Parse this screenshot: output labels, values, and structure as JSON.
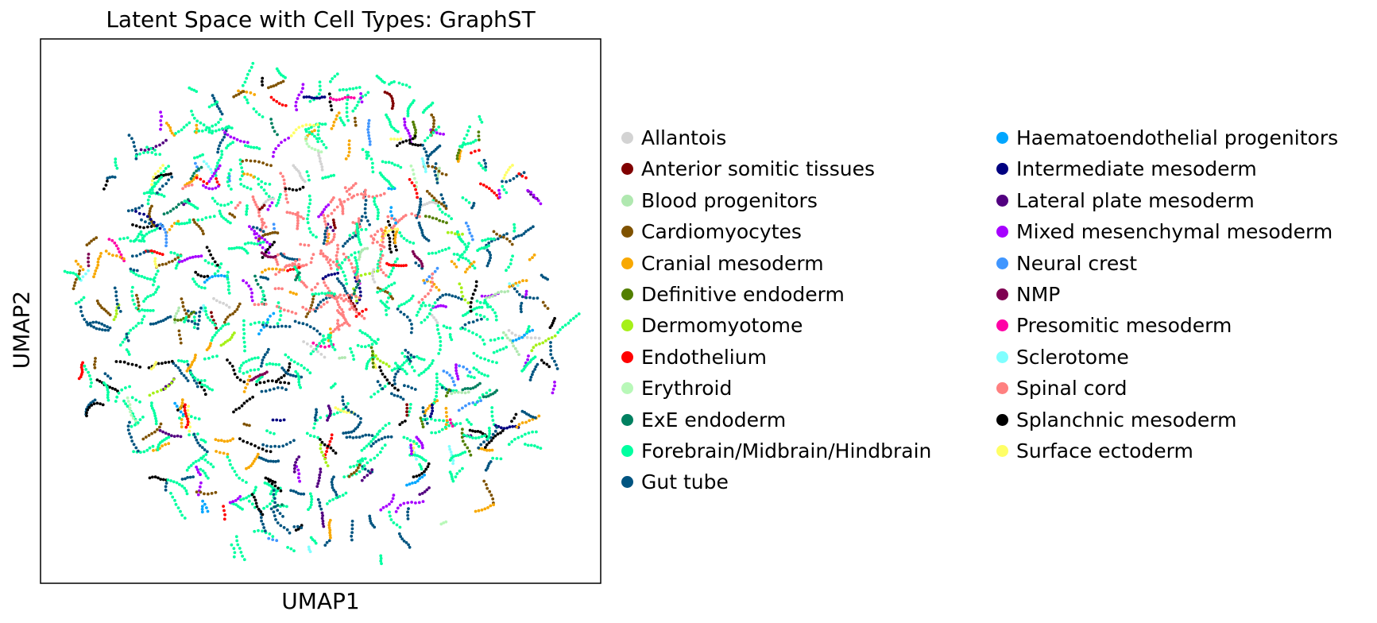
{
  "chart_data": {
    "type": "scatter",
    "title": "Latent Space with Cell Types: GraphST",
    "xlabel": "UMAP1",
    "ylabel": "UMAP2",
    "xticks": [],
    "yticks": [],
    "grid": false,
    "legend_position": "right",
    "series": [
      {
        "name": "Allantois",
        "color": "#d3d3d3",
        "weight": 1
      },
      {
        "name": "Anterior somitic tissues",
        "color": "#800000",
        "weight": 1
      },
      {
        "name": "Blood progenitors",
        "color": "#b0e8b0",
        "weight": 1
      },
      {
        "name": "Cardiomyocytes",
        "color": "#7f5200",
        "weight": 5
      },
      {
        "name": "Cranial mesoderm",
        "color": "#f8a800",
        "weight": 7
      },
      {
        "name": "Definitive endoderm",
        "color": "#527f00",
        "weight": 1
      },
      {
        "name": "Dermomyotome",
        "color": "#a6f018",
        "weight": 2
      },
      {
        "name": "Endothelium",
        "color": "#ff0000",
        "weight": 2
      },
      {
        "name": "Erythroid",
        "color": "#b8f8b8",
        "weight": 1
      },
      {
        "name": "ExE endoderm",
        "color": "#008060",
        "weight": 1
      },
      {
        "name": "Forebrain/Midbrain/Hindbrain",
        "color": "#00ffa0",
        "weight": 40
      },
      {
        "name": "Gut tube",
        "color": "#005480",
        "weight": 12
      },
      {
        "name": "Haematoendothelial progenitors",
        "color": "#00a6ff",
        "weight": 1
      },
      {
        "name": "Intermediate mesoderm",
        "color": "#000080",
        "weight": 1
      },
      {
        "name": "Lateral plate mesoderm",
        "color": "#520080",
        "weight": 1
      },
      {
        "name": "Mixed mesenchymal mesoderm",
        "color": "#a600ff",
        "weight": 6
      },
      {
        "name": "Neural crest",
        "color": "#4096ff",
        "weight": 2
      },
      {
        "name": "NMP",
        "color": "#7f0052",
        "weight": 1
      },
      {
        "name": "Presomitic mesoderm",
        "color": "#ff00a6",
        "weight": 1
      },
      {
        "name": "Sclerotome",
        "color": "#80ffff",
        "weight": 1
      },
      {
        "name": "Spinal cord",
        "color": "#ff8080",
        "weight": 8
      },
      {
        "name": "Splanchnic mesoderm",
        "color": "#000000",
        "weight": 5
      },
      {
        "name": "Surface ectoderm",
        "color": "#ffff66",
        "weight": 2
      }
    ]
  }
}
